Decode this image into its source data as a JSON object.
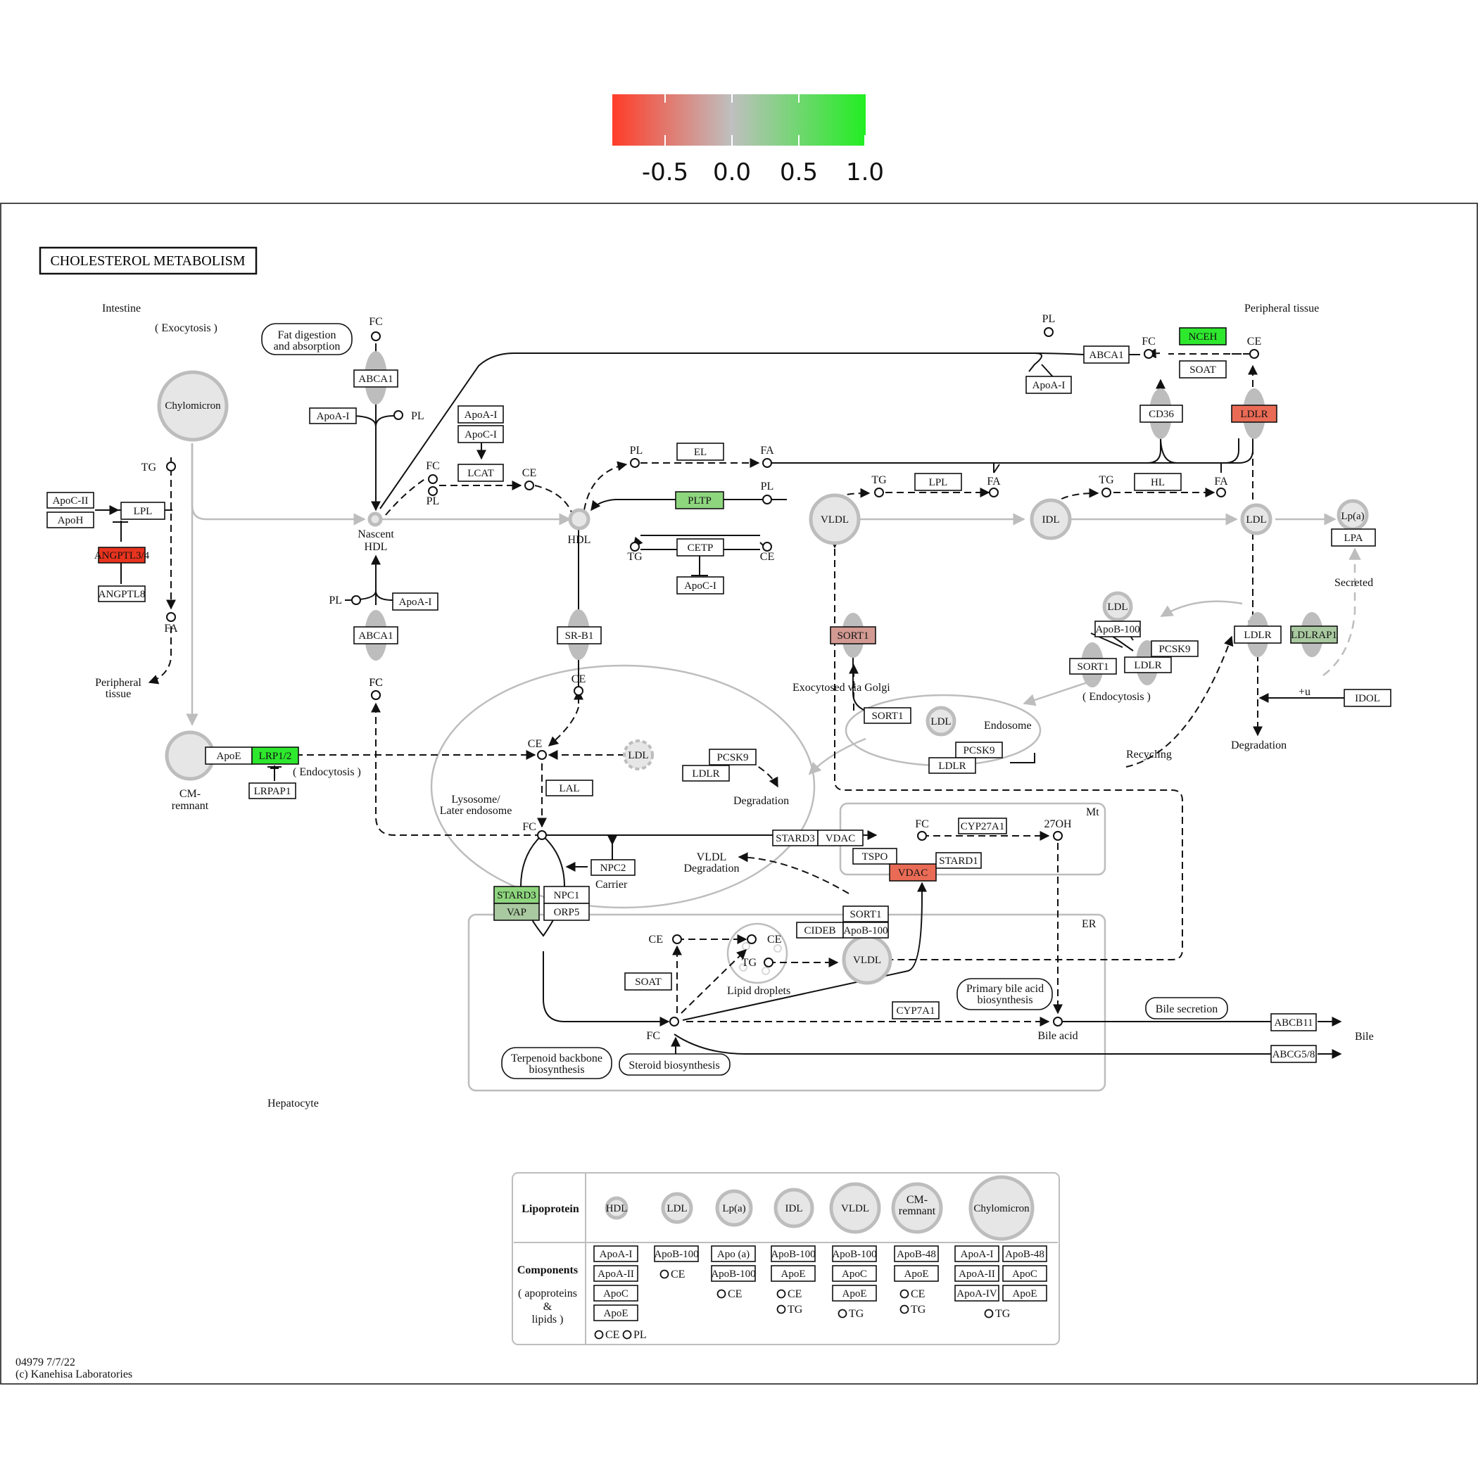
{
  "colorbar": {
    "ticks": [
      "-0.5",
      "0.0",
      "0.5",
      "1.0"
    ],
    "colors": {
      "low": "#ff3c28",
      "mid": "#bfbfbf",
      "high": "#22ee22"
    }
  },
  "title": "CHOLESTEROL METABOLISM",
  "footer": {
    "id": "04979 7/7/22",
    "copyright": "(c) Kanehisa Laboratories"
  },
  "colors": {
    "red_strong": "#e8331e",
    "red_medium": "#ea6b55",
    "red_light": "#d29a92",
    "green_strong": "#2ee82e",
    "green_light": "#8ed67e",
    "green_grey": "#a9c9a0"
  },
  "regions": {
    "intestine": "Intestine",
    "exocytosis": "( Exocytosis )",
    "peripheral_tissue": "Peripheral tissue",
    "peripheral_tissue_left_1": "Peripheral",
    "peripheral_tissue_left_2": "tissue",
    "hepatocyte": "Hepatocyte",
    "lysosome_1": "Lysosome/",
    "lysosome_2": "Later endosome",
    "endosome": "Endosome",
    "mt": "Mt",
    "er": "ER",
    "endocytosis_left": "( Endocytosis )",
    "endocytosis_right": "( Endocytosis )",
    "exocytosed": "Exocytosed via Golgi",
    "recycling": "Recycling",
    "degradation": "Degradation",
    "secreted": "Secreted",
    "carrier": "Carrier",
    "vldl_degradation_1": "VLDL",
    "vldl_degradation_2": "Degradation",
    "lipid_droplets": "Lipid droplets",
    "bile": "Bile",
    "bile_acid": "Bile acid",
    "plus_u": "+u"
  },
  "pathway_links": {
    "fat_digestion_1": "Fat digestion",
    "fat_digestion_2": "and absorption",
    "primary_bile_1": "Primary bile acid",
    "primary_bile_2": "biosynthesis",
    "bile_secretion": "Bile secretion",
    "terpenoid_1": "Terpenoid backbone",
    "terpenoid_2": "biosynthesis",
    "steroid": "Steroid biosynthesis"
  },
  "lipoproteins": {
    "chylomicron": "Chylomicron",
    "nascent_hdl_1": "Nascent",
    "nascent_hdl_2": "HDL",
    "hdl": "HDL",
    "vldl": "VLDL",
    "idl": "IDL",
    "ldl": "LDL",
    "lpa": "Lp(a)",
    "cm_remnant_1": "CM-",
    "cm_remnant_2": "remnant"
  },
  "genes": {
    "abca1_top": "ABCA1",
    "apoai_left": "ApoA-I",
    "apoai_mid": "ApoA-I",
    "apoci_mid": "ApoC-I",
    "lcat": "LCAT",
    "el": "EL",
    "pltp": "PLTP",
    "cetp": "CETP",
    "apoci_cetp": "ApoC-I",
    "lpl_vldl": "LPL",
    "hl": "HL",
    "abca1_right": "ABCA1",
    "apoai_right": "ApoA-I",
    "nceh": "NCEH",
    "soat_right": "SOAT",
    "cd36": "CD36",
    "ldlr_top": "LDLR",
    "lpa_gene": "LPA",
    "apocii": "ApoC-II",
    "apoh": "ApoH",
    "lpl_left": "LPL",
    "angptl34": "ANGPTL3/4",
    "angptl8": "ANGPTL8",
    "abca1_low": "ABCA1",
    "apoai_low": "ApoA-I",
    "srb1": "SR-B1",
    "sort1_red": "SORT1",
    "apob100_endo": "ApoB-100",
    "pcsk9_endo": "PCSK9",
    "sort1_endo": "SORT1",
    "ldlr_endo": "LDLR",
    "ldlr_right": "LDLR",
    "ldlrap1": "LDLRAP1",
    "idol": "IDOL",
    "sort1_golgi": "SORT1",
    "pcsk9_rec": "PCSK9",
    "ldlr_rec": "LDLR",
    "apoe": "ApoE",
    "lrp12": "LRP1/2",
    "lrpap1": "LRPAP1",
    "pcsk9_lys": "PCSK9",
    "ldlr_lys": "LDLR",
    "lal": "LAL",
    "stard3": "STARD3",
    "vdac_white": "VDAC",
    "cyp27a1": "CYP27A1",
    "tspo": "TSPO",
    "vdac_red": "VDAC",
    "stard1": "STARD1",
    "npc2": "NPC2",
    "npc1": "NPC1",
    "orp5": "ORP5",
    "stard3_green": "STARD3",
    "vap": "VAP",
    "sort1_er": "SORT1",
    "cideb": "CIDEB",
    "apob100_er": "ApoB-100",
    "soat_er": "SOAT",
    "cyp7a1": "CYP7A1",
    "abcb11": "ABCB11",
    "abcg58": "ABCG5/8"
  },
  "compounds": {
    "fc": "FC",
    "pl": "PL",
    "tg": "TG",
    "ce": "CE",
    "fa": "FA",
    "oh27": "27OH"
  },
  "legend": {
    "row1_title": "Lipoprotein",
    "row2_title": "Components",
    "row2_sub_1": "( apoproteins",
    "row2_sub_2": "&",
    "row2_sub_3": "lipids )",
    "columns": [
      {
        "name": "HDL",
        "genes": [
          "ApoA-I",
          "ApoA-II",
          "ApoC",
          "ApoE"
        ],
        "lipids": [
          "CE",
          "PL"
        ]
      },
      {
        "name": "LDL",
        "genes": [
          "ApoB-100"
        ],
        "lipids": [
          "CE"
        ]
      },
      {
        "name": "Lp(a)",
        "genes": [
          "Apo (a)",
          "ApoB-100"
        ],
        "lipids": [
          "CE"
        ]
      },
      {
        "name": "IDL",
        "genes": [
          "ApoB-100",
          "ApoE"
        ],
        "lipids": [
          "CE",
          "TG"
        ]
      },
      {
        "name": "VLDL",
        "genes": [
          "ApoB-100",
          "ApoC",
          "ApoE"
        ],
        "lipids": [
          "TG"
        ]
      },
      {
        "name": "CM-remnant",
        "genes": [
          "ApoB-48",
          "ApoE"
        ],
        "lipids": [
          "CE",
          "TG"
        ]
      },
      {
        "name": "Chylomicron",
        "genes": [
          "ApoA-I",
          "ApoA-II",
          "ApoA-IV",
          "ApoB-48",
          "ApoC",
          "ApoE"
        ],
        "lipids": [
          "TG"
        ]
      }
    ]
  }
}
